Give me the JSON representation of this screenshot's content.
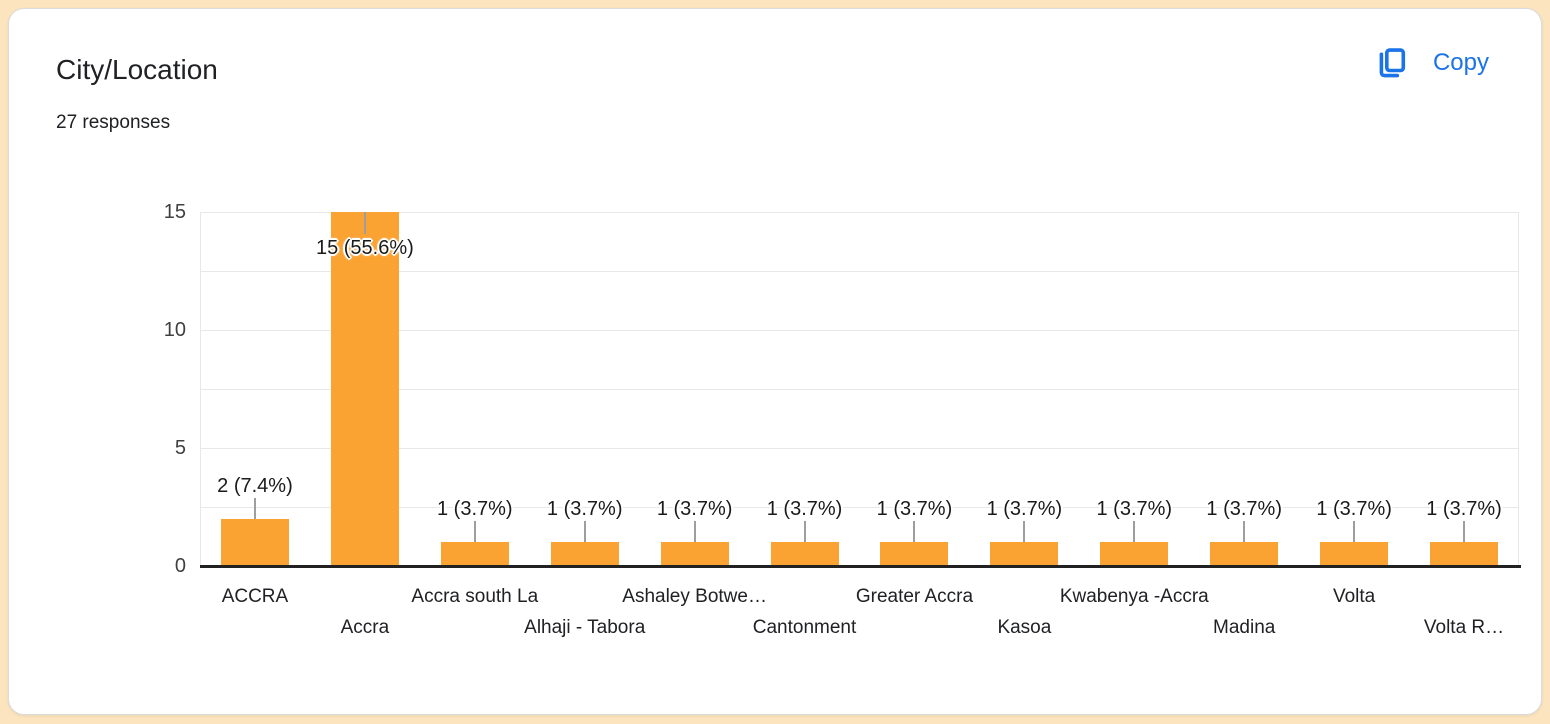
{
  "header": {
    "title": "City/Location",
    "responses": "27 responses",
    "copy_label": "Copy"
  },
  "icons": {
    "copy": "copy-icon"
  },
  "colors": {
    "page_background": "#FCE4BE",
    "card_background": "#FFFFFF",
    "card_border": "#D9DBDD",
    "accent_blue": "#1A73E8",
    "bar_orange": "#FAA332",
    "annotation_text": "#1A1A1A",
    "annotation_stem": "#9E9E9E",
    "gridline": "#E8E8E8",
    "axis_baseline": "#212121",
    "tick_text": "#404040"
  },
  "chart_data": {
    "type": "bar",
    "title": "City/Location",
    "xlabel": "",
    "ylabel": "",
    "categories": [
      "ACCRA",
      "Accra",
      "Accra south La",
      "Alhaji - Tabora",
      "Ashaley Botwe…",
      "Cantonment",
      "Greater Accra",
      "Kasoa",
      "Kwabenya -Accra",
      "Madina",
      "Volta",
      "Volta R…"
    ],
    "values": [
      2,
      15,
      1,
      1,
      1,
      1,
      1,
      1,
      1,
      1,
      1,
      1
    ],
    "bar_labels": [
      "2 (7.4%)",
      "15 (55.6%)",
      "1 (3.7%)",
      "1 (3.7%)",
      "1 (3.7%)",
      "1 (3.7%)",
      "1 (3.7%)",
      "1 (3.7%)",
      "1 (3.7%)",
      "1 (3.7%)",
      "1 (3.7%)",
      "1 (3.7%)"
    ],
    "total_responses": 27,
    "ylim": [
      0,
      15
    ],
    "y_ticks": [
      0,
      5,
      10,
      15
    ],
    "y_gridlines": [
      2.5,
      5,
      7.5,
      10,
      12.5,
      15
    ],
    "grid": true,
    "legend": "none",
    "bar_color": "#FAA332",
    "x_label_layout": "staggered-two-rows"
  }
}
